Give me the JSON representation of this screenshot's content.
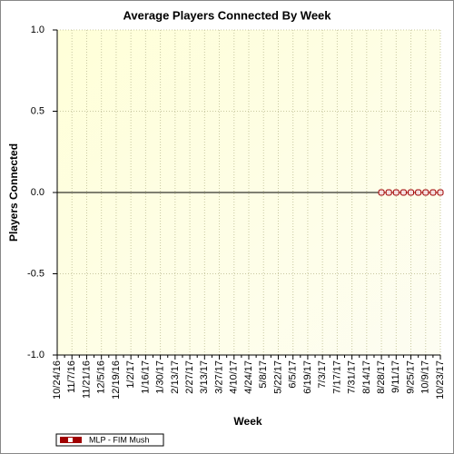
{
  "chart_data": {
    "type": "line",
    "title": "Average Players Connected By Week",
    "x_label": "Week",
    "y_label": "Players Connected",
    "categories": [
      "10/24/16",
      null,
      "11/7/16",
      null,
      "11/21/16",
      null,
      "12/5/16",
      null,
      "12/19/16",
      null,
      "1/2/17",
      null,
      "1/16/17",
      null,
      "1/30/17",
      null,
      "2/13/17",
      null,
      "2/27/17",
      null,
      "3/13/17",
      null,
      "3/27/17",
      null,
      "4/10/17",
      null,
      "4/24/17",
      null,
      "5/8/17",
      null,
      "5/22/17",
      null,
      "6/5/17",
      null,
      "6/19/17",
      null,
      "7/3/17",
      null,
      "7/17/17",
      null,
      "7/31/17",
      null,
      "8/14/17",
      null,
      "8/28/17",
      null,
      "9/11/17",
      null,
      "9/25/17",
      null,
      "10/9/17",
      null,
      "10/23/17"
    ],
    "series": [
      {
        "name": "MLP - FIM Mush",
        "color": "#a00000",
        "values": [
          null,
          null,
          null,
          null,
          null,
          null,
          null,
          null,
          null,
          null,
          null,
          null,
          null,
          null,
          null,
          null,
          null,
          null,
          null,
          null,
          null,
          null,
          null,
          null,
          null,
          null,
          null,
          null,
          null,
          null,
          null,
          null,
          null,
          null,
          null,
          null,
          null,
          null,
          null,
          null,
          null,
          null,
          null,
          null,
          0,
          0,
          0,
          0,
          0,
          0,
          0,
          0,
          0
        ]
      }
    ],
    "ylim": [
      -1,
      1
    ],
    "yticks": [
      {
        "value": -1,
        "label": "-1.0"
      },
      {
        "value": -0.5,
        "label": "-0.5"
      },
      {
        "value": 0,
        "label": "0.0"
      },
      {
        "value": 0.5,
        "label": "0.5"
      },
      {
        "value": 1,
        "label": "1.0"
      }
    ],
    "grid": true,
    "legend": "bottom-left"
  }
}
